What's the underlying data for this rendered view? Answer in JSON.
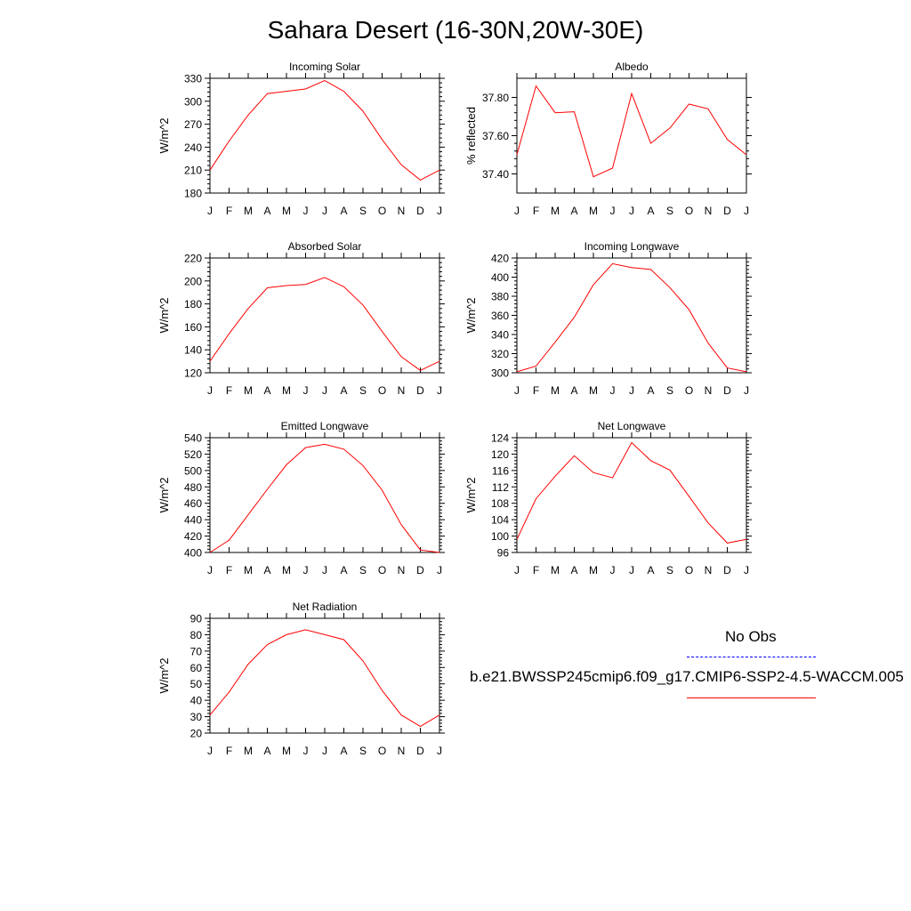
{
  "title": "Sahara Desert (16-30N,20W-30E)",
  "month_labels": [
    "J",
    "F",
    "M",
    "A",
    "M",
    "J",
    "J",
    "A",
    "S",
    "O",
    "N",
    "D",
    "J"
  ],
  "legend": {
    "items": [
      {
        "label": "No Obs",
        "color": "#0000ff",
        "style": "dashed"
      },
      {
        "label": "b.e21.BWSSP245cmip6.f09_g17.CMIP6-SSP2-4.5-WACCM.005",
        "color": "#ff0000",
        "style": "solid"
      }
    ]
  },
  "colors": {
    "series": "#ff0000",
    "obs": "#0000ff"
  },
  "chart_data": [
    {
      "type": "line",
      "title": "Incoming Solar",
      "xlabel": "",
      "ylabel": "W/m^2",
      "ylim": [
        180,
        330
      ],
      "yticks": [
        180,
        210,
        240,
        270,
        300,
        330
      ],
      "ydecimals": 0,
      "x": [
        "J",
        "F",
        "M",
        "A",
        "M",
        "J",
        "J",
        "A",
        "S",
        "O",
        "N",
        "D",
        "J"
      ],
      "series": [
        {
          "values": [
            210,
            248,
            282,
            310,
            313,
            316,
            327,
            313,
            287,
            250,
            217,
            197,
            210
          ]
        }
      ]
    },
    {
      "type": "line",
      "title": "Albedo",
      "xlabel": "",
      "ylabel": "% reflected",
      "ylim": [
        37.3,
        37.9
      ],
      "yticks": [
        37.4,
        37.6,
        37.8
      ],
      "ydecimals": 2,
      "x": [
        "J",
        "F",
        "M",
        "A",
        "M",
        "J",
        "J",
        "A",
        "S",
        "O",
        "N",
        "D",
        "J"
      ],
      "series": [
        {
          "values": [
            37.5,
            37.86,
            37.72,
            37.725,
            37.385,
            37.43,
            37.82,
            37.56,
            37.64,
            37.765,
            37.74,
            37.58,
            37.5
          ]
        }
      ]
    },
    {
      "type": "line",
      "title": "Absorbed Solar",
      "xlabel": "",
      "ylabel": "W/m^2",
      "ylim": [
        120,
        220
      ],
      "yticks": [
        120,
        140,
        160,
        180,
        200,
        220
      ],
      "ydecimals": 0,
      "x": [
        "J",
        "F",
        "M",
        "A",
        "M",
        "J",
        "J",
        "A",
        "S",
        "O",
        "N",
        "D",
        "J"
      ],
      "series": [
        {
          "values": [
            130,
            154,
            176,
            194,
            196,
            197,
            203,
            195,
            179,
            156,
            134,
            122,
            130
          ]
        }
      ]
    },
    {
      "type": "line",
      "title": "Incoming Longwave",
      "xlabel": "",
      "ylabel": "W/m^2",
      "ylim": [
        300,
        420
      ],
      "yticks": [
        300,
        320,
        340,
        360,
        380,
        400,
        420
      ],
      "ydecimals": 0,
      "x": [
        "J",
        "F",
        "M",
        "A",
        "M",
        "J",
        "J",
        "A",
        "S",
        "O",
        "N",
        "D",
        "J"
      ],
      "series": [
        {
          "values": [
            301,
            307,
            332,
            358,
            392,
            414,
            410,
            408,
            389,
            366,
            331,
            305,
            301
          ]
        }
      ]
    },
    {
      "type": "line",
      "title": "Emitted Longwave",
      "xlabel": "",
      "ylabel": "W/m^2",
      "ylim": [
        400,
        540
      ],
      "yticks": [
        400,
        420,
        440,
        460,
        480,
        500,
        520,
        540
      ],
      "ydecimals": 0,
      "x": [
        "J",
        "F",
        "M",
        "A",
        "M",
        "J",
        "J",
        "A",
        "S",
        "O",
        "N",
        "D",
        "J"
      ],
      "series": [
        {
          "values": [
            400,
            415,
            446,
            477,
            507,
            528,
            532,
            526,
            506,
            476,
            434,
            403,
            400
          ]
        }
      ]
    },
    {
      "type": "line",
      "title": "Net Longwave",
      "xlabel": "",
      "ylabel": "W/m^2",
      "ylim": [
        96,
        124
      ],
      "yticks": [
        96,
        100,
        104,
        108,
        112,
        116,
        120,
        124
      ],
      "ydecimals": 0,
      "x": [
        "J",
        "F",
        "M",
        "A",
        "M",
        "J",
        "J",
        "A",
        "S",
        "O",
        "N",
        "D",
        "J"
      ],
      "series": [
        {
          "values": [
            99.2,
            109.1,
            114.6,
            119.6,
            115.5,
            114.2,
            122.8,
            118.4,
            116.1,
            109.7,
            103.2,
            98.3,
            99.2
          ]
        }
      ]
    },
    {
      "type": "line",
      "title": "Net Radiation",
      "xlabel": "",
      "ylabel": "W/m^2",
      "ylim": [
        20,
        90
      ],
      "yticks": [
        20,
        30,
        40,
        50,
        60,
        70,
        80,
        90
      ],
      "ydecimals": 0,
      "x": [
        "J",
        "F",
        "M",
        "A",
        "M",
        "J",
        "J",
        "A",
        "S",
        "O",
        "N",
        "D",
        "J"
      ],
      "series": [
        {
          "values": [
            31,
            45,
            62,
            74,
            80,
            83,
            80,
            77,
            64,
            46,
            31,
            24,
            31
          ]
        }
      ]
    }
  ]
}
